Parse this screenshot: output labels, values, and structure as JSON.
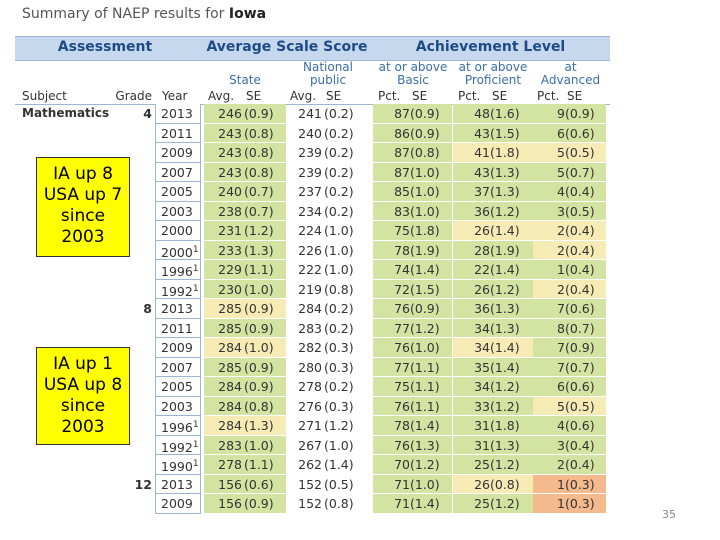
{
  "header": {
    "title": "Summary of NAEP results for",
    "state": "Iowa"
  },
  "table": {
    "groups": [
      "Assessment",
      "Average Scale Score",
      "Achievement Level"
    ],
    "subgroups": [
      "State",
      "National public",
      "at or above Basic",
      "at or above Proficient",
      "at Advanced"
    ],
    "columns": [
      "Subject",
      "Grade",
      "Year",
      "Avg.",
      "SE",
      "Avg.",
      "SE",
      "Pct.",
      "SE",
      "Pct.",
      "SE",
      "Pct.",
      "SE"
    ],
    "subject": "Mathematics",
    "grades": [
      {
        "grade": "4",
        "rows": [
          {
            "year": "2013",
            "cells": [
              246,
              "(0.9)",
              241,
              "(0.2)",
              87,
              "(0.9)",
              48,
              "(1.6)",
              9,
              "(0.9)"
            ],
            "colors": [
              "#d3e3a2",
              "#d3e3a2",
              "#d3e3a2",
              "#d3e3a2"
            ]
          },
          {
            "year": "2011",
            "cells": [
              243,
              "(0.8)",
              240,
              "(0.2)",
              86,
              "(0.9)",
              43,
              "(1.5)",
              6,
              "(0.6)"
            ],
            "colors": [
              "#d3e3a2",
              "#d3e3a2",
              "#d3e3a2",
              "#d3e3a2"
            ]
          },
          {
            "year": "2009",
            "cells": [
              243,
              "(0.8)",
              239,
              "(0.2)",
              87,
              "(0.8)",
              41,
              "(1.8)",
              5,
              "(0.5)"
            ],
            "colors": [
              "#d3e3a2",
              "#d3e3a2",
              "#f6ebb4",
              "#f6ebb4"
            ]
          },
          {
            "year": "2007",
            "cells": [
              243,
              "(0.8)",
              239,
              "(0.2)",
              87,
              "(1.0)",
              43,
              "(1.3)",
              5,
              "(0.7)"
            ],
            "colors": [
              "#d3e3a2",
              "#d3e3a2",
              "#d3e3a2",
              "#d3e3a2"
            ]
          },
          {
            "year": "2005",
            "cells": [
              240,
              "(0.7)",
              237,
              "(0.2)",
              85,
              "(1.0)",
              37,
              "(1.3)",
              4,
              "(0.4)"
            ],
            "colors": [
              "#d3e3a2",
              "#d3e3a2",
              "#d3e3a2",
              "#d3e3a2"
            ]
          },
          {
            "year": "2003",
            "cells": [
              238,
              "(0.7)",
              234,
              "(0.2)",
              83,
              "(1.0)",
              36,
              "(1.2)",
              3,
              "(0.5)"
            ],
            "colors": [
              "#d3e3a2",
              "#d3e3a2",
              "#d3e3a2",
              "#d3e3a2"
            ]
          },
          {
            "year": "2000",
            "cells": [
              231,
              "(1.2)",
              224,
              "(1.0)",
              75,
              "(1.8)",
              26,
              "(1.4)",
              2,
              "(0.4)"
            ],
            "colors": [
              "#d3e3a2",
              "#d3e3a2",
              "#f6ebb4",
              "#f6ebb4"
            ]
          },
          {
            "year": "2000",
            "note": "1",
            "cells": [
              233,
              "(1.3)",
              226,
              "(1.0)",
              78,
              "(1.9)",
              28,
              "(1.9)",
              2,
              "(0.4)"
            ],
            "colors": [
              "#d3e3a2",
              "#d3e3a2",
              "#d3e3a2",
              "#f6ebb4"
            ]
          },
          {
            "year": "1996",
            "note": "1",
            "cells": [
              229,
              "(1.1)",
              222,
              "(1.0)",
              74,
              "(1.4)",
              22,
              "(1.4)",
              1,
              "(0.4)"
            ],
            "colors": [
              "#d3e3a2",
              "#d3e3a2",
              "#d3e3a2",
              "#d3e3a2"
            ]
          },
          {
            "year": "1992",
            "note": "1",
            "cells": [
              230,
              "(1.0)",
              219,
              "(0.8)",
              72,
              "(1.5)",
              26,
              "(1.2)",
              2,
              "(0.4)"
            ],
            "colors": [
              "#d3e3a2",
              "#d3e3a2",
              "#d3e3a2",
              "#f6ebb4"
            ]
          }
        ]
      },
      {
        "grade": "8",
        "rows": [
          {
            "year": "2013",
            "cells": [
              285,
              "(0.9)",
              284,
              "(0.2)",
              76,
              "(0.9)",
              36,
              "(1.3)",
              7,
              "(0.6)"
            ],
            "colors": [
              "#f6ebb4",
              "#d3e3a2",
              "#d3e3a2",
              "#d3e3a2"
            ]
          },
          {
            "year": "2011",
            "cells": [
              285,
              "(0.9)",
              283,
              "(0.2)",
              77,
              "(1.2)",
              34,
              "(1.3)",
              8,
              "(0.7)"
            ],
            "colors": [
              "#d3e3a2",
              "#d3e3a2",
              "#d3e3a2",
              "#d3e3a2"
            ]
          },
          {
            "year": "2009",
            "cells": [
              284,
              "(1.0)",
              282,
              "(0.3)",
              76,
              "(1.0)",
              34,
              "(1.4)",
              7,
              "(0.9)"
            ],
            "colors": [
              "#f6ebb4",
              "#d3e3a2",
              "#f6ebb4",
              "#d3e3a2"
            ]
          },
          {
            "year": "2007",
            "cells": [
              285,
              "(0.9)",
              280,
              "(0.3)",
              77,
              "(1.1)",
              35,
              "(1.4)",
              7,
              "(0.7)"
            ],
            "colors": [
              "#d3e3a2",
              "#d3e3a2",
              "#d3e3a2",
              "#d3e3a2"
            ]
          },
          {
            "year": "2005",
            "cells": [
              284,
              "(0.9)",
              278,
              "(0.2)",
              75,
              "(1.1)",
              34,
              "(1.2)",
              6,
              "(0.6)"
            ],
            "colors": [
              "#d3e3a2",
              "#d3e3a2",
              "#d3e3a2",
              "#d3e3a2"
            ]
          },
          {
            "year": "2003",
            "cells": [
              284,
              "(0.8)",
              276,
              "(0.3)",
              76,
              "(1.1)",
              33,
              "(1.2)",
              5,
              "(0.5)"
            ],
            "colors": [
              "#d3e3a2",
              "#d3e3a2",
              "#d3e3a2",
              "#f6ebb4"
            ]
          },
          {
            "year": "1996",
            "note": "1",
            "cells": [
              284,
              "(1.3)",
              271,
              "(1.2)",
              78,
              "(1.4)",
              31,
              "(1.8)",
              4,
              "(0.6)"
            ],
            "colors": [
              "#f6ebb4",
              "#d3e3a2",
              "#d3e3a2",
              "#d3e3a2"
            ]
          },
          {
            "year": "1992",
            "note": "1",
            "cells": [
              283,
              "(1.0)",
              267,
              "(1.0)",
              76,
              "(1.3)",
              31,
              "(1.3)",
              3,
              "(0.4)"
            ],
            "colors": [
              "#d3e3a2",
              "#d3e3a2",
              "#d3e3a2",
              "#d3e3a2"
            ]
          },
          {
            "year": "1990",
            "note": "1",
            "cells": [
              278,
              "(1.1)",
              262,
              "(1.4)",
              70,
              "(1.2)",
              25,
              "(1.2)",
              2,
              "(0.4)"
            ],
            "colors": [
              "#d3e3a2",
              "#d3e3a2",
              "#d3e3a2",
              "#d3e3a2"
            ]
          }
        ]
      },
      {
        "grade": "12",
        "rows": [
          {
            "year": "2013",
            "cells": [
              156,
              "(0.6)",
              152,
              "(0.5)",
              71,
              "(1.0)",
              26,
              "(0.8)",
              1,
              "(0.3)"
            ],
            "colors": [
              "#d3e3a2",
              "#d3e3a2",
              "#f6ebb4",
              "#f5b98e"
            ]
          },
          {
            "year": "2009",
            "cells": [
              156,
              "(0.9)",
              152,
              "(0.8)",
              71,
              "(1.4)",
              25,
              "(1.2)",
              1,
              "(0.3)"
            ],
            "colors": [
              "#d3e3a2",
              "#d3e3a2",
              "#d3e3a2",
              "#f5b98e"
            ]
          }
        ]
      }
    ]
  },
  "callouts": [
    "IA up 8 USA up 7 since 2003",
    "IA up 1 USA up 8 since 2003"
  ],
  "page_number": "35"
}
